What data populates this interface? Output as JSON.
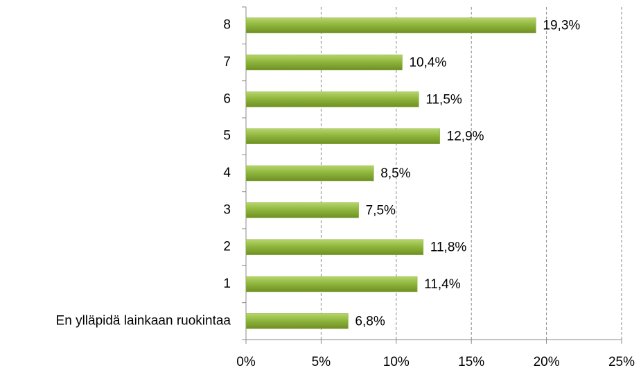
{
  "chart_data": {
    "type": "bar",
    "orientation": "horizontal",
    "categories": [
      "En ylläpidä lainkaan ruokintaa",
      "1",
      "2",
      "3",
      "4",
      "5",
      "6",
      "7",
      "8"
    ],
    "values": [
      6.8,
      11.4,
      11.8,
      7.5,
      8.5,
      12.9,
      11.5,
      10.4,
      19.3
    ],
    "value_labels": [
      "6,8%",
      "11,4%",
      "11,8%",
      "7,5%",
      "8,5%",
      "12,9%",
      "11,5%",
      "10,4%",
      "19,3%"
    ],
    "color": "#8db33a",
    "xlim": [
      0,
      25
    ],
    "xticks": [
      {
        "value": 0,
        "label": "0%"
      },
      {
        "value": 5,
        "label": "5%"
      },
      {
        "value": 10,
        "label": "10%"
      },
      {
        "value": 15,
        "label": "15%"
      },
      {
        "value": 20,
        "label": "20%"
      },
      {
        "value": 25,
        "label": "25%"
      }
    ],
    "grid": true
  }
}
